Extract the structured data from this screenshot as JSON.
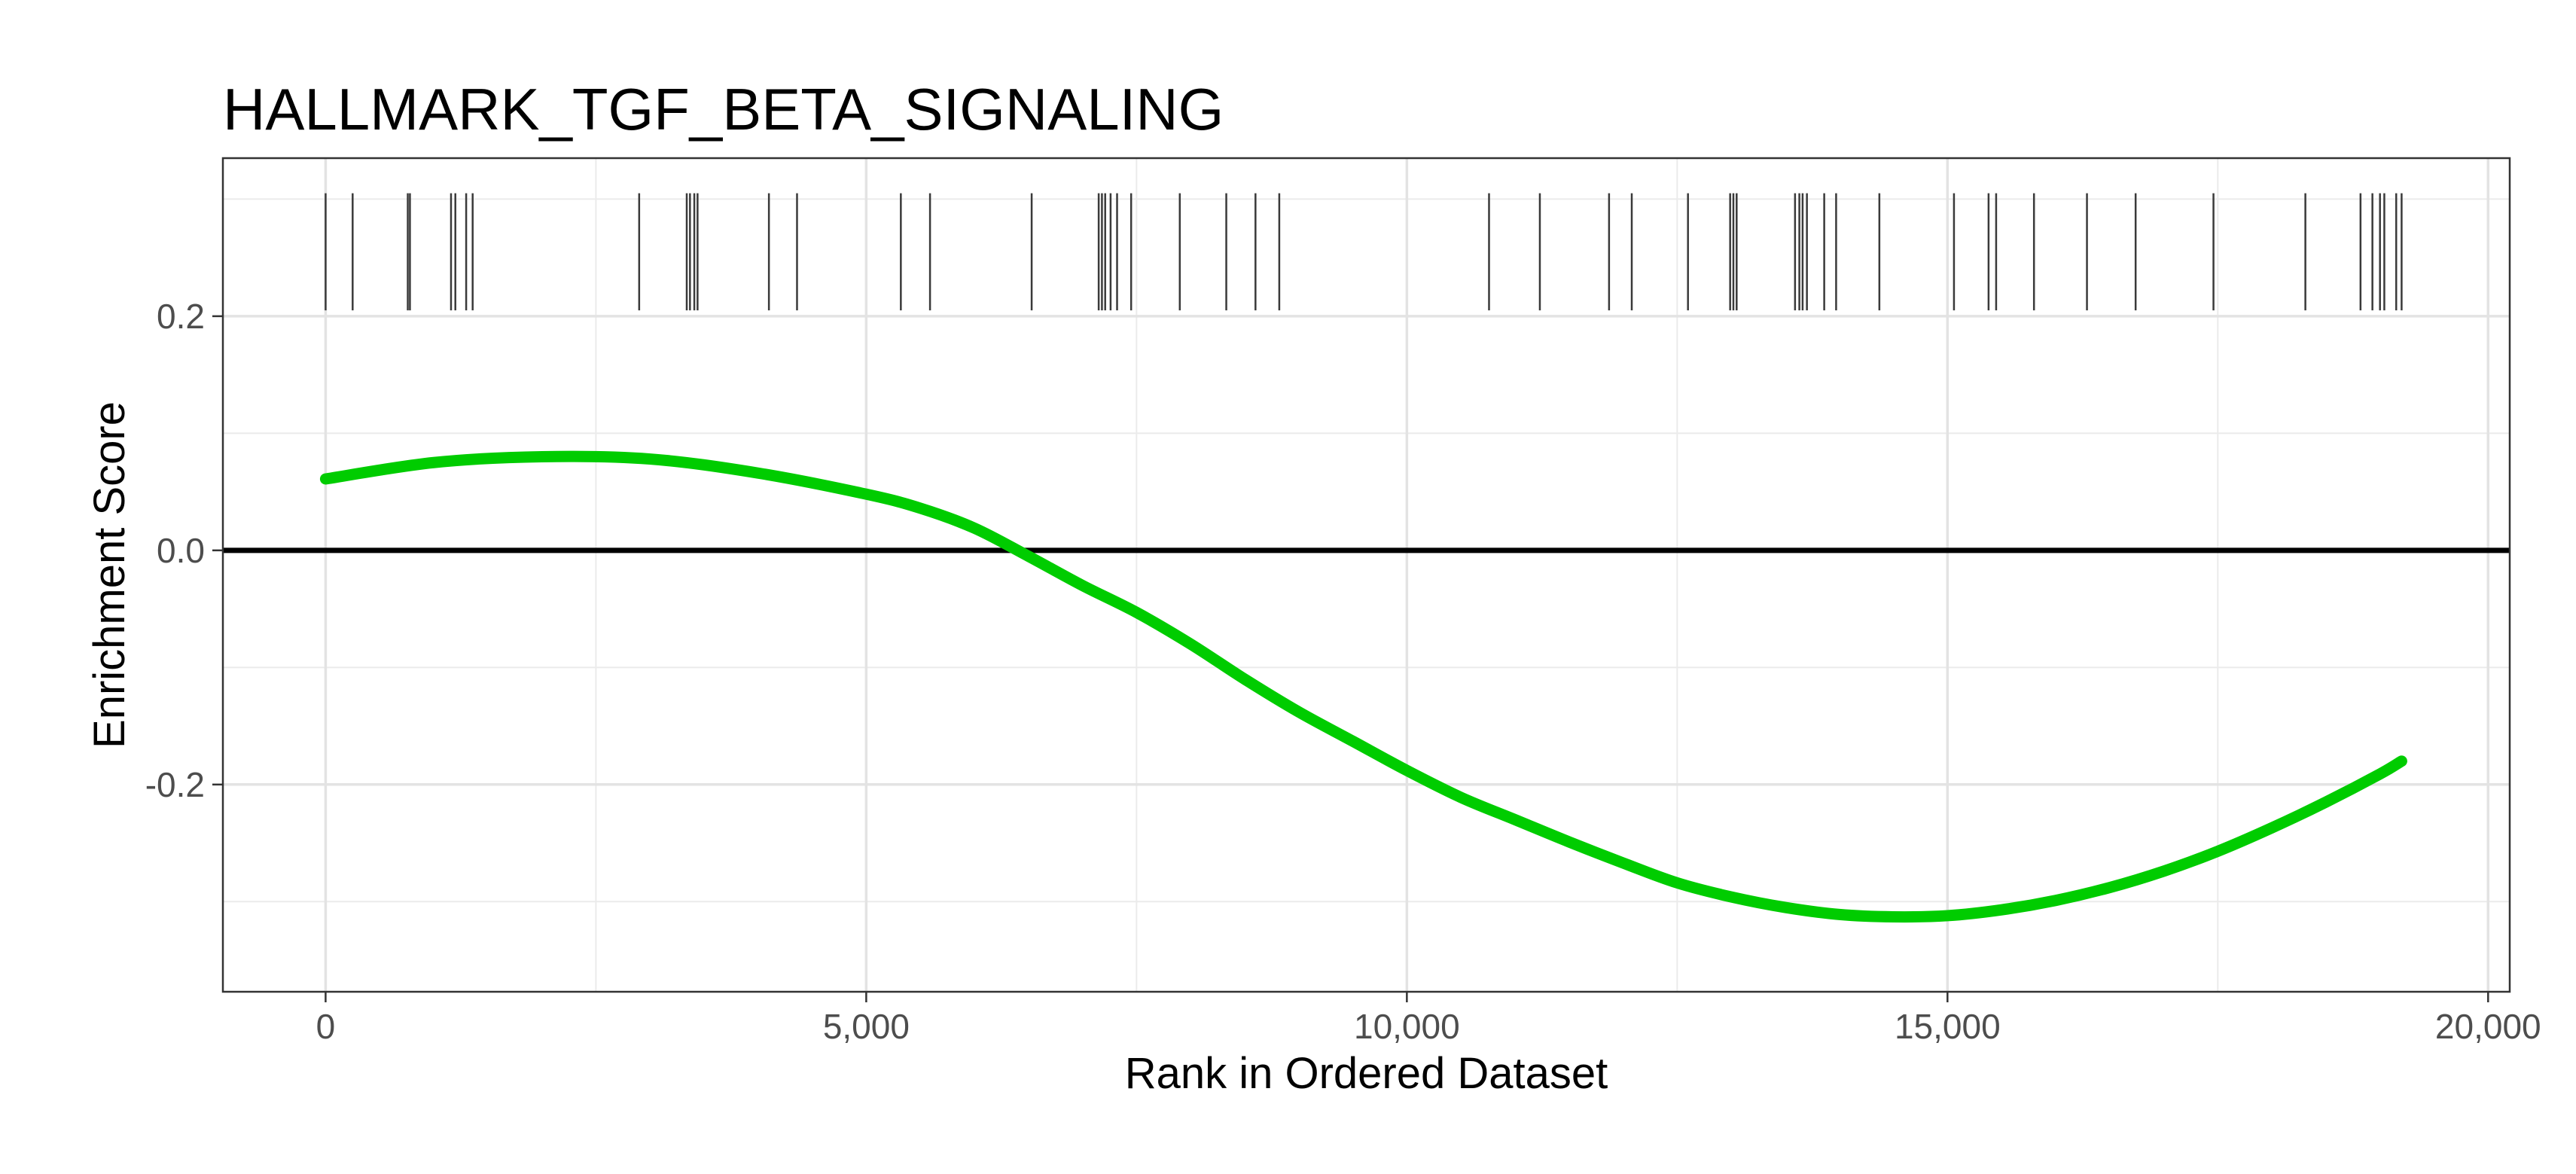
{
  "chart_data": {
    "type": "line",
    "title": "HALLMARK_TGF_BETA_SIGNALING",
    "xlabel": "Rank in Ordered Dataset",
    "ylabel": "Enrichment Score",
    "xlim": [
      -950,
      20200
    ],
    "ylim": [
      -0.377,
      0.335
    ],
    "x_ticks": [
      0,
      5000,
      10000,
      15000,
      20000
    ],
    "x_tick_labels": [
      "0",
      "5,000",
      "10,000",
      "15,000",
      "20,000"
    ],
    "y_ticks": [
      0.2,
      0.0,
      -0.2
    ],
    "y_tick_labels": [
      "0.2",
      "0.0",
      "-0.2"
    ],
    "grid": true,
    "reference_line": 0.0,
    "series": [
      {
        "color": "#00cc00",
        "x": [
          0,
          1000,
          2000,
          3000,
          4000,
          5000,
          5500,
          6000,
          6500,
          7000,
          7500,
          8000,
          8500,
          9000,
          9500,
          10000,
          10500,
          11000,
          11500,
          12000,
          12500,
          13000,
          13500,
          14000,
          14500,
          15000,
          15500,
          16000,
          16500,
          17000,
          17500,
          18000,
          18500,
          19000,
          19200
        ],
        "y": [
          0.061,
          0.075,
          0.08,
          0.078,
          0.066,
          0.048,
          0.036,
          0.019,
          -0.005,
          -0.03,
          -0.053,
          -0.08,
          -0.11,
          -0.138,
          -0.163,
          -0.188,
          -0.211,
          -0.23,
          -0.249,
          -0.267,
          -0.284,
          -0.296,
          -0.305,
          -0.311,
          -0.313,
          -0.312,
          -0.307,
          -0.299,
          -0.288,
          -0.274,
          -0.257,
          -0.237,
          -0.215,
          -0.191,
          -0.18
        ]
      }
    ],
    "hit_ranks": [
      0,
      250,
      760,
      780,
      1160,
      1200,
      1300,
      1360,
      2900,
      3340,
      3370,
      3410,
      3440,
      4100,
      4360,
      5320,
      5590,
      6530,
      7150,
      7180,
      7210,
      7260,
      7320,
      7450,
      7900,
      8330,
      8600,
      8820,
      10760,
      11230,
      11870,
      12080,
      12600,
      12990,
      13020,
      13050,
      13590,
      13630,
      13660,
      13700,
      13860,
      13970,
      14370,
      15060,
      15380,
      15450,
      15800,
      16290,
      16740,
      17460,
      18310,
      18820,
      18930,
      19000,
      19040,
      19150,
      19200
    ],
    "hit_y_range": [
      0.205,
      0.305
    ]
  }
}
